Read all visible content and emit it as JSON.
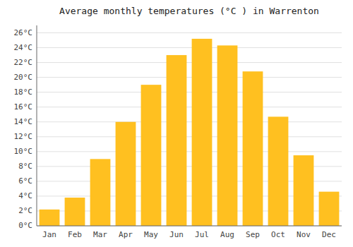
{
  "chart_data": {
    "type": "bar",
    "title": "Average monthly temperatures (°C ) in Warrenton",
    "categories": [
      "Jan",
      "Feb",
      "Mar",
      "Apr",
      "May",
      "Jun",
      "Jul",
      "Aug",
      "Sep",
      "Oct",
      "Nov",
      "Dec"
    ],
    "values": [
      2.2,
      3.8,
      9.0,
      14.0,
      19.0,
      23.0,
      25.2,
      24.3,
      20.8,
      14.7,
      9.5,
      4.6
    ],
    "color": "#FFC020",
    "ylim": [
      0,
      27
    ],
    "yticks": [
      {
        "value": 0,
        "label": "0°C"
      },
      {
        "value": 2,
        "label": "2°C"
      },
      {
        "value": 4,
        "label": "4°C"
      },
      {
        "value": 6,
        "label": "6°C"
      },
      {
        "value": 8,
        "label": "8°C"
      },
      {
        "value": 10,
        "label": "10°C"
      },
      {
        "value": 12,
        "label": "12°C"
      },
      {
        "value": 14,
        "label": "14°C"
      },
      {
        "value": 16,
        "label": "16°C"
      },
      {
        "value": 18,
        "label": "18°C"
      },
      {
        "value": 20,
        "label": "20°C"
      },
      {
        "value": 22,
        "label": "22°C"
      },
      {
        "value": 24,
        "label": "24°C"
      },
      {
        "value": 26,
        "label": "26°C"
      }
    ],
    "grid": true
  }
}
